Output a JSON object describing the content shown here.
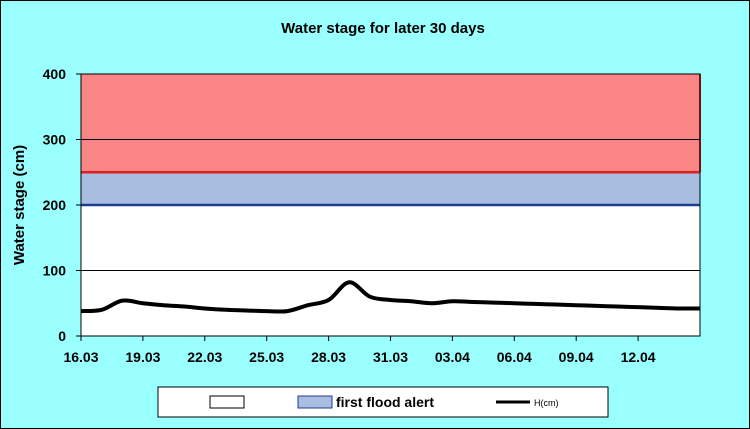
{
  "chart_data": {
    "type": "line",
    "title": "Water stage for later 30 days",
    "ylabel": "Water stage (cm)",
    "xlabel": "",
    "ylim": [
      0,
      400
    ],
    "yticks": [
      0,
      100,
      200,
      300,
      400
    ],
    "grid": true,
    "xlim": [
      "2024-03-16",
      "2024-04-15"
    ],
    "xtick_labels": [
      {
        "date": "2024-03-16",
        "label": "16.03"
      },
      {
        "date": "2024-03-19",
        "label": "19.03"
      },
      {
        "date": "2024-03-22",
        "label": "22.03"
      },
      {
        "date": "2024-03-25",
        "label": "25.03"
      },
      {
        "date": "2024-03-28",
        "label": "28.03"
      },
      {
        "date": "2024-03-31",
        "label": "31.03"
      },
      {
        "date": "2024-04-03",
        "label": "03.04"
      },
      {
        "date": "2024-04-06",
        "label": "06.04"
      },
      {
        "date": "2024-04-09",
        "label": "09.04"
      },
      {
        "date": "2024-04-12",
        "label": "12.04"
      }
    ],
    "bands": [
      {
        "name": "",
        "from": 0,
        "to": 200,
        "fill": "#ffffff",
        "edge": "#000000"
      },
      {
        "name": "first flood alert",
        "from": 200,
        "to": 250,
        "fill": "#a9bde0",
        "edge": "#1f3c8f"
      },
      {
        "name": "",
        "from": 250,
        "to": 400,
        "fill": "#fa8585",
        "edge": "#e02020"
      }
    ],
    "series": [
      {
        "name": "H(cm)",
        "color": "#000000",
        "points": [
          {
            "x": "2024-03-16",
            "y": 38
          },
          {
            "x": "2024-03-17",
            "y": 40
          },
          {
            "x": "2024-03-18",
            "y": 54
          },
          {
            "x": "2024-03-19",
            "y": 50
          },
          {
            "x": "2024-03-20",
            "y": 47
          },
          {
            "x": "2024-03-21",
            "y": 45
          },
          {
            "x": "2024-03-22",
            "y": 42
          },
          {
            "x": "2024-03-23",
            "y": 40
          },
          {
            "x": "2024-03-24",
            "y": 39
          },
          {
            "x": "2024-03-25",
            "y": 38
          },
          {
            "x": "2024-03-26",
            "y": 38
          },
          {
            "x": "2024-03-27",
            "y": 47
          },
          {
            "x": "2024-03-28",
            "y": 55
          },
          {
            "x": "2024-03-29",
            "y": 82
          },
          {
            "x": "2024-03-30",
            "y": 60
          },
          {
            "x": "2024-03-31",
            "y": 55
          },
          {
            "x": "2024-04-01",
            "y": 53
          },
          {
            "x": "2024-04-02",
            "y": 50
          },
          {
            "x": "2024-04-03",
            "y": 53
          },
          {
            "x": "2024-04-04",
            "y": 52
          },
          {
            "x": "2024-04-05",
            "y": 51
          },
          {
            "x": "2024-04-06",
            "y": 50
          },
          {
            "x": "2024-04-07",
            "y": 49
          },
          {
            "x": "2024-04-08",
            "y": 48
          },
          {
            "x": "2024-04-09",
            "y": 47
          },
          {
            "x": "2024-04-10",
            "y": 46
          },
          {
            "x": "2024-04-11",
            "y": 45
          },
          {
            "x": "2024-04-12",
            "y": 44
          },
          {
            "x": "2024-04-13",
            "y": 43
          },
          {
            "x": "2024-04-14",
            "y": 42
          },
          {
            "x": "2024-04-15",
            "y": 42
          }
        ]
      }
    ],
    "legend": {
      "position": "bottom",
      "entries": [
        {
          "label": "",
          "kind": "box",
          "fill": "#ffffff"
        },
        {
          "label": "first flood alert",
          "kind": "box",
          "fill": "#a9bde0"
        },
        {
          "label": "H(cm)",
          "kind": "line",
          "color": "#000000"
        }
      ]
    },
    "colors": {
      "background": "#99ffff",
      "plot_area": "#ffffff"
    }
  }
}
